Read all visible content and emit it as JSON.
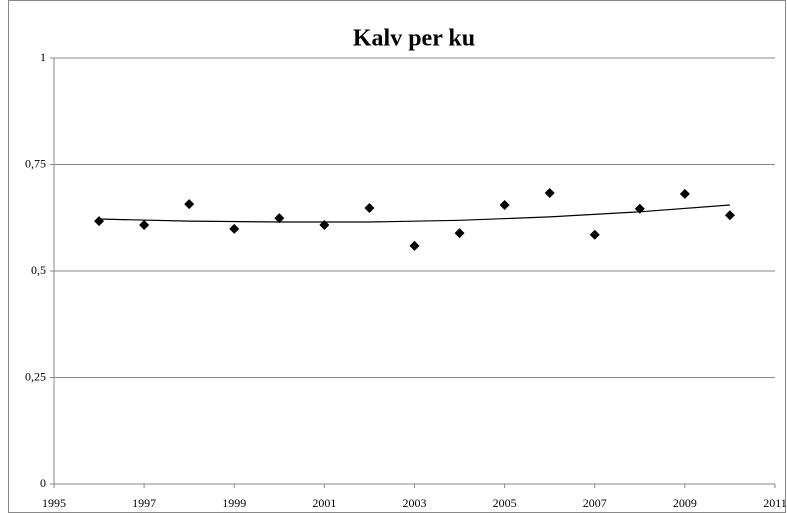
{
  "chart_data": {
    "type": "scatter",
    "title": "Kalv per ku",
    "x": [
      1996,
      1997,
      1998,
      1999,
      2000,
      2001,
      2002,
      2003,
      2004,
      2005,
      2006,
      2007,
      2008,
      2009,
      2010
    ],
    "values": [
      0.617,
      0.608,
      0.657,
      0.599,
      0.624,
      0.608,
      0.648,
      0.559,
      0.589,
      0.655,
      0.683,
      0.585,
      0.646,
      0.681,
      0.631
    ],
    "color": "#000000",
    "trendline": {
      "x": [
        1996,
        1998,
        2000,
        2002,
        2004,
        2006,
        2008,
        2010
      ],
      "values": [
        0.622,
        0.617,
        0.615,
        0.615,
        0.619,
        0.627,
        0.639,
        0.655
      ],
      "color": "#000000"
    },
    "xlim": [
      1995,
      2011
    ],
    "xticks": [
      1995,
      1997,
      1999,
      2001,
      2003,
      2005,
      2007,
      2009,
      2011
    ],
    "ylim": [
      0,
      1
    ],
    "yticks": [
      0,
      {
        "value": 0.25,
        "label": "0,25"
      },
      {
        "value": 0.5,
        "label": "0,5"
      },
      {
        "value": 0.75,
        "label": "0,75"
      },
      1
    ],
    "grid": true
  }
}
